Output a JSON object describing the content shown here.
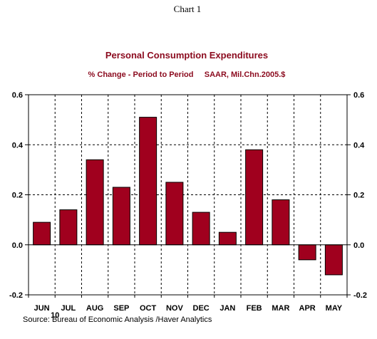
{
  "page": {
    "header": "Chart 1"
  },
  "colors": {
    "title": "#8b0a1e",
    "bar_fill": "#a0001e",
    "bar_stroke": "#000000",
    "axis": "#000000",
    "grid": "#000000",
    "background": "#ffffff"
  },
  "chart_data": {
    "type": "bar",
    "title": "Personal Consumption Expenditures",
    "subtitle": "% Change - Period to Period     SAAR, Mil.Chn.2005.$",
    "categories": [
      "JUN",
      "JUL",
      "AUG",
      "SEP",
      "OCT",
      "NOV",
      "DEC",
      "JAN",
      "FEB",
      "MAR",
      "APR",
      "MAY"
    ],
    "year_labels": [
      {
        "category": "JUN",
        "label": "10"
      }
    ],
    "values": [
      0.09,
      0.14,
      0.34,
      0.23,
      0.51,
      0.25,
      0.13,
      0.05,
      0.38,
      0.18,
      -0.06,
      -0.12
    ],
    "ylim": [
      -0.2,
      0.6
    ],
    "yticks": [
      -0.2,
      0.0,
      0.2,
      0.4,
      0.6
    ],
    "ytick_labels": [
      "-0.2",
      "0.0",
      "0.2",
      "0.4",
      "0.6"
    ],
    "right_axis": true,
    "grid": "dashed",
    "xlabel": "",
    "ylabel": "",
    "source": "Source:  Bureau of Economic Analysis /Haver Analytics"
  }
}
